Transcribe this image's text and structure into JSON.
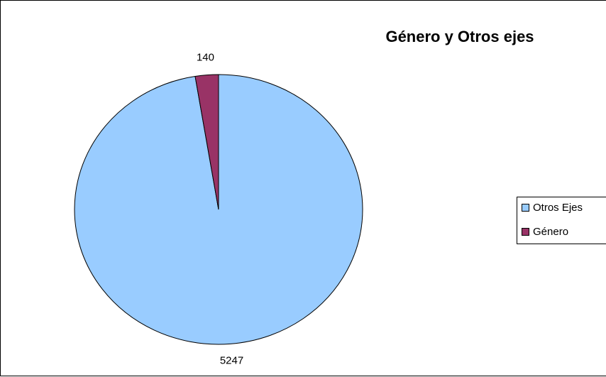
{
  "chart_data": {
    "type": "pie",
    "title": "Género y Otros ejes",
    "categories": [
      "Otros Ejes",
      "Género"
    ],
    "values": [
      5247,
      140
    ],
    "colors": [
      "#99ccff",
      "#993366"
    ],
    "legend": "right"
  }
}
